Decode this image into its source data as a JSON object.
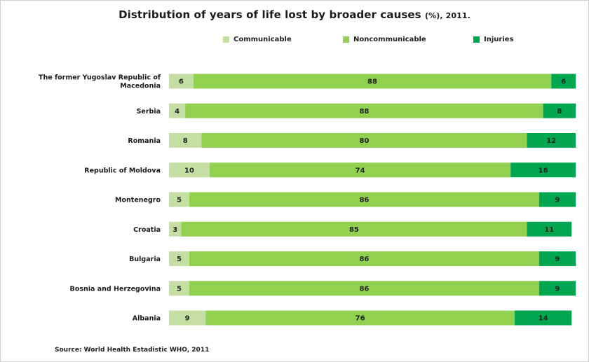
{
  "title": "Distribution of years of life lost by broader causes",
  "title_suffix": "(%), 2011.",
  "source": "Source: World Health Estadistic  WHO, 2011",
  "colors": {
    "Communicable": "#c5dea4",
    "Noncommunicable": "#92d050",
    "Injuries": "#00a650"
  },
  "chart_data": {
    "type": "bar",
    "orientation": "horizontal",
    "stacked": true,
    "title": "Distribution of years of life lost by broader causes (%), 2011.",
    "categories": [
      "The former Yugoslav Republic of Macedonia",
      "Serbia",
      "Romania",
      "Republic of Moldova",
      "Montenegro",
      "Croatia",
      "Bulgaria",
      "Bosnia and Herzegovina",
      "Albania"
    ],
    "series": [
      {
        "name": "Communicable",
        "values": [
          6,
          4,
          8,
          10,
          5,
          3,
          5,
          5,
          9
        ]
      },
      {
        "name": "Noncommunicable",
        "values": [
          88,
          88,
          80,
          74,
          86,
          85,
          86,
          86,
          76
        ]
      },
      {
        "name": "Injuries",
        "values": [
          6,
          8,
          12,
          16,
          9,
          11,
          9,
          9,
          14
        ]
      }
    ],
    "legend": "top",
    "grid": false,
    "data_labels": true
  }
}
